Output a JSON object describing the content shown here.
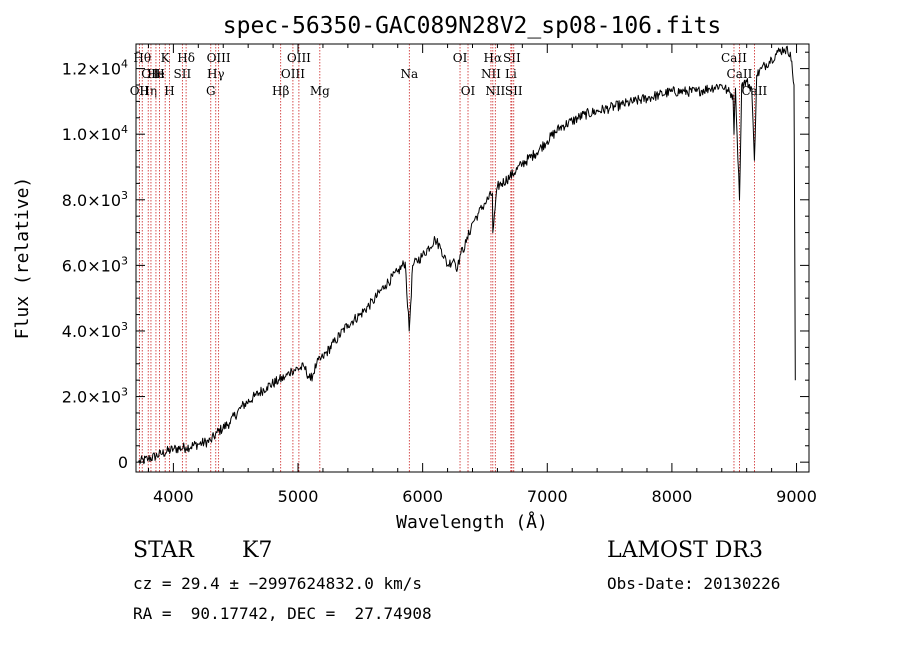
{
  "chart_data": {
    "type": "line",
    "title": "spec-56350-GAC089N28V2_sp08-106.fits",
    "xlabel": "Wavelength (Å)",
    "ylabel": "Flux (relative)",
    "xlim": [
      3700,
      9100
    ],
    "ylim": [
      -300,
      12750
    ],
    "x_ticks": [
      4000,
      5000,
      6000,
      7000,
      8000,
      9000
    ],
    "x_tick_labels": [
      "4000",
      "5000",
      "6000",
      "7000",
      "8000",
      "9000"
    ],
    "y_ticks": [
      0,
      2000,
      4000,
      6000,
      8000,
      10000,
      12000
    ],
    "y_tick_labels": [
      {
        "mant": "0",
        "exp": ""
      },
      {
        "mant": "2.0×10",
        "exp": "3"
      },
      {
        "mant": "4.0×10",
        "exp": "3"
      },
      {
        "mant": "6.0×10",
        "exp": "3"
      },
      {
        "mant": "8.0×10",
        "exp": "3"
      },
      {
        "mant": "1.0×10",
        "exp": "4"
      },
      {
        "mant": "1.2×10",
        "exp": "4"
      }
    ],
    "series": [
      {
        "name": "flux",
        "x": [
          3720,
          3800,
          3900,
          4000,
          4100,
          4200,
          4300,
          4350,
          4450,
          4550,
          4650,
          4750,
          4850,
          4900,
          4950,
          5050,
          5100,
          5150,
          5200,
          5300,
          5400,
          5500,
          5600,
          5700,
          5800,
          5860,
          5892,
          5920,
          6000,
          6100,
          6150,
          6200,
          6250,
          6280,
          6300,
          6350,
          6400,
          6450,
          6500,
          6560,
          6563,
          6600,
          6700,
          6800,
          6900,
          7000,
          7100,
          7200,
          7300,
          7400,
          7500,
          7600,
          7700,
          7800,
          7900,
          8000,
          8100,
          8200,
          8300,
          8400,
          8450,
          8490,
          8498,
          8510,
          8542,
          8560,
          8600,
          8640,
          8662,
          8680,
          8720,
          8800,
          8850,
          8900,
          8950,
          8980,
          8990
        ],
        "y": [
          0,
          100,
          250,
          400,
          450,
          550,
          650,
          900,
          1200,
          1700,
          2000,
          2300,
          2500,
          2600,
          2800,
          2900,
          2500,
          3000,
          3200,
          3700,
          4200,
          4500,
          4900,
          5400,
          5800,
          6100,
          4000,
          6000,
          6300,
          6800,
          6500,
          6000,
          6200,
          5900,
          6300,
          6700,
          7300,
          7600,
          7900,
          8200,
          7000,
          8400,
          8700,
          9100,
          9400,
          9800,
          10200,
          10400,
          10600,
          10700,
          10800,
          10900,
          11000,
          11100,
          11200,
          11300,
          11300,
          11300,
          11400,
          11500,
          11300,
          11200,
          10000,
          11400,
          8000,
          11500,
          11600,
          11400,
          9200,
          11800,
          12000,
          12300,
          12500,
          12600,
          12500,
          11500,
          2500
        ]
      }
    ],
    "spectral_lines": [
      {
        "wave": 3727,
        "label": "OII",
        "row": 3
      },
      {
        "wave": 3750,
        "label": "Hθ",
        "row": 1
      },
      {
        "wave": 3798,
        "label": "Hη",
        "row": 3
      },
      {
        "wave": 3820,
        "label": "OII",
        "row": 2
      },
      {
        "wave": 3860,
        "label": "He",
        "row": 2
      },
      {
        "wave": 3889,
        "label": "H",
        "row": 2
      },
      {
        "wave": 3934,
        "label": "K",
        "row": 1
      },
      {
        "wave": 3969,
        "label": "H",
        "row": 3
      },
      {
        "wave": 4072,
        "label": "SII",
        "row": 2
      },
      {
        "wave": 4102,
        "label": "Hδ",
        "row": 1
      },
      {
        "wave": 4300,
        "label": "G",
        "row": 3
      },
      {
        "wave": 4340,
        "label": "Hγ",
        "row": 2
      },
      {
        "wave": 4363,
        "label": "OIII",
        "row": 1
      },
      {
        "wave": 4861,
        "label": "Hβ",
        "row": 3
      },
      {
        "wave": 4959,
        "label": "OIII",
        "row": 2
      },
      {
        "wave": 5007,
        "label": "OIII",
        "row": 1
      },
      {
        "wave": 5175,
        "label": "Mg",
        "row": 3
      },
      {
        "wave": 5893,
        "label": "Na",
        "row": 2
      },
      {
        "wave": 6300,
        "label": "OI",
        "row": 1
      },
      {
        "wave": 6364,
        "label": "OI",
        "row": 3
      },
      {
        "wave": 6548,
        "label": "NII",
        "row": 2
      },
      {
        "wave": 6563,
        "label": "Hα",
        "row": 1
      },
      {
        "wave": 6583,
        "label": "NII",
        "row": 3
      },
      {
        "wave": 6708,
        "label": "Li",
        "row": 2
      },
      {
        "wave": 6716,
        "label": "SII",
        "row": 1
      },
      {
        "wave": 6731,
        "label": "SII",
        "row": 3
      },
      {
        "wave": 8498,
        "label": "CaII",
        "row": 1
      },
      {
        "wave": 8542,
        "label": "CaII",
        "row": 2
      },
      {
        "wave": 8662,
        "label": "CaII",
        "row": 3
      }
    ]
  },
  "info": {
    "class": "STAR",
    "subclass": "K7",
    "survey": "LAMOST DR3",
    "redshift": "cz = 29.4 ± −2997624832.0 km/s",
    "obs_date": "Obs-Date: 20130226",
    "coords": "RA =  90.17742, DEC =  27.74908"
  }
}
